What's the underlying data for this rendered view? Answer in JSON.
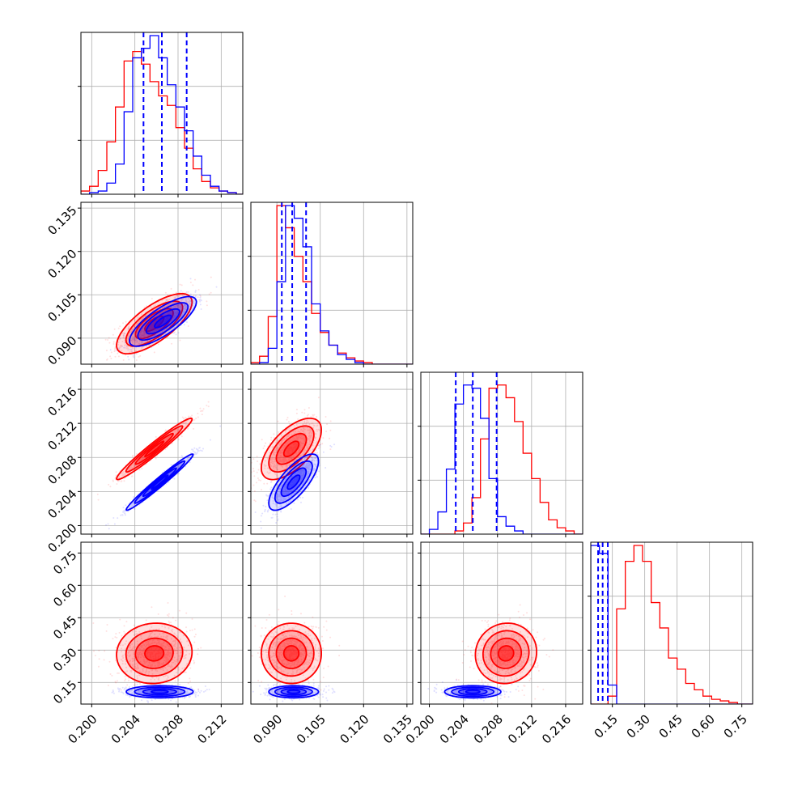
{
  "chart_data": {
    "type": "corner",
    "title": "",
    "colors": {
      "series_a": "#0000ff",
      "series_b": "#ff0000"
    },
    "grid": true,
    "parameters": [
      {
        "index": 0,
        "range": [
          0.199,
          0.214
        ],
        "ticks": [
          0.2,
          0.204,
          0.208,
          0.212
        ],
        "tick_labels": [
          "0.200",
          "0.204",
          "0.208",
          "0.212"
        ]
      },
      {
        "index": 1,
        "range": [
          0.081,
          0.137
        ],
        "ticks": [
          0.09,
          0.105,
          0.12,
          0.135
        ],
        "tick_labels": [
          "0.090",
          "0.105",
          "0.120",
          "0.135"
        ]
      },
      {
        "index": 2,
        "range": [
          0.199,
          0.218
        ],
        "ticks": [
          0.2,
          0.204,
          0.208,
          0.212,
          0.216
        ],
        "tick_labels": [
          "0.200",
          "0.204",
          "0.208",
          "0.212",
          "0.216"
        ]
      },
      {
        "index": 3,
        "range": [
          0.05,
          0.8
        ],
        "ticks": [
          0.15,
          0.3,
          0.45,
          0.6,
          0.75
        ],
        "tick_labels": [
          "0.15",
          "0.30",
          "0.45",
          "0.60",
          "0.75"
        ]
      }
    ],
    "diag_ylim": [
      [
        0,
        1.0
      ],
      [
        0,
        1.0
      ],
      [
        0,
        1.0
      ],
      [
        0,
        1.0
      ]
    ],
    "histograms": [
      {
        "param": 0,
        "edges": [
          0.199,
          0.1998,
          0.2006,
          0.2014,
          0.2022,
          0.203,
          0.2038,
          0.2046,
          0.2054,
          0.2062,
          0.207,
          0.2078,
          0.2086,
          0.2094,
          0.2102,
          0.211,
          0.2118,
          0.2126,
          0.2134,
          0.214
        ],
        "series_a_values": [
          0.0,
          0.01,
          0.02,
          0.07,
          0.19,
          0.52,
          0.86,
          0.92,
          1.0,
          0.86,
          0.69,
          0.55,
          0.4,
          0.24,
          0.12,
          0.05,
          0.02,
          0.01,
          0.0
        ],
        "series_b_values": [
          0.02,
          0.05,
          0.15,
          0.33,
          0.55,
          0.84,
          0.9,
          0.82,
          0.71,
          0.62,
          0.56,
          0.42,
          0.29,
          0.16,
          0.08,
          0.04,
          0.02,
          0.01,
          0.0
        ],
        "quantiles": [
          0.2048,
          0.2065,
          0.2088
        ]
      },
      {
        "param": 1,
        "edges": [
          0.081,
          0.084,
          0.087,
          0.09,
          0.093,
          0.096,
          0.099,
          0.102,
          0.105,
          0.108,
          0.111,
          0.114,
          0.117,
          0.12,
          0.123,
          0.126,
          0.129,
          0.132,
          0.135,
          0.137
        ],
        "series_a_values": [
          0.0,
          0.01,
          0.1,
          0.52,
          1.0,
          0.92,
          0.74,
          0.38,
          0.21,
          0.12,
          0.06,
          0.03,
          0.01,
          0.0,
          0.0,
          0.0,
          0.0,
          0.0,
          0.0
        ],
        "series_b_values": [
          0.01,
          0.05,
          0.3,
          1.0,
          0.86,
          0.68,
          0.52,
          0.32,
          0.2,
          0.12,
          0.07,
          0.04,
          0.02,
          0.01,
          0.0,
          0.0,
          0.0,
          0.0,
          0.0
        ],
        "quantiles": [
          0.0917,
          0.0953,
          0.1001
        ]
      },
      {
        "param": 2,
        "edges": [
          0.199,
          0.2,
          0.201,
          0.202,
          0.203,
          0.204,
          0.205,
          0.206,
          0.207,
          0.208,
          0.209,
          0.21,
          0.211,
          0.212,
          0.213,
          0.214,
          0.215,
          0.216,
          0.217,
          0.218
        ],
        "series_a_values": [
          0.0,
          0.03,
          0.14,
          0.41,
          0.82,
          0.94,
          0.92,
          0.73,
          0.35,
          0.11,
          0.05,
          0.02,
          0.0,
          0.0,
          0.0,
          0.0,
          0.0,
          0.0,
          0.0
        ],
        "series_b_values": [
          0.0,
          0.0,
          0.0,
          0.0,
          0.02,
          0.07,
          0.23,
          0.6,
          0.92,
          0.94,
          0.86,
          0.71,
          0.51,
          0.35,
          0.2,
          0.09,
          0.04,
          0.02,
          0.0
        ],
        "quantiles": [
          0.2031,
          0.2051,
          0.2079
        ]
      },
      {
        "param": 3,
        "edges": [
          0.05,
          0.09,
          0.13,
          0.17,
          0.21,
          0.25,
          0.29,
          0.33,
          0.37,
          0.41,
          0.45,
          0.49,
          0.53,
          0.57,
          0.61,
          0.65,
          0.69,
          0.73,
          0.77,
          0.8
        ],
        "series_a_values": [
          1.0,
          0.95,
          0.12,
          0.0,
          0.0,
          0.0,
          0.0,
          0.0,
          0.0,
          0.0,
          0.0,
          0.0,
          0.0,
          0.0,
          0.0,
          0.0,
          0.0,
          0.0,
          0.0
        ],
        "series_b_values": [
          0.0,
          0.0,
          0.05,
          0.6,
          0.9,
          1.0,
          0.9,
          0.64,
          0.48,
          0.29,
          0.22,
          0.13,
          0.09,
          0.05,
          0.03,
          0.02,
          0.01,
          0.0,
          0.0
        ],
        "quantiles": [
          0.084,
          0.105,
          0.129
        ]
      }
    ],
    "joint": [
      {
        "x_param": 0,
        "y_param": 1,
        "series_a": {
          "center": [
            0.2066,
            0.0958
          ],
          "sd": [
            0.00155,
            0.0043
          ],
          "corr": 0.78
        },
        "series_b": {
          "center": [
            0.2058,
            0.095
          ],
          "sd": [
            0.00175,
            0.0052
          ],
          "corr": 0.72
        }
      },
      {
        "x_param": 0,
        "y_param": 2,
        "series_a": {
          "center": [
            0.2063,
            0.2051
          ],
          "sd": [
            0.00155,
            0.00165
          ],
          "corr": 0.98
        },
        "series_b": {
          "center": [
            0.2058,
            0.209
          ],
          "sd": [
            0.00175,
            0.0018
          ],
          "corr": 0.97
        }
      },
      {
        "x_param": 1,
        "y_param": 2,
        "series_a": {
          "center": [
            0.0958,
            0.2051
          ],
          "sd": [
            0.0043,
            0.00165
          ],
          "corr": 0.75
        },
        "series_b": {
          "center": [
            0.095,
            0.209
          ],
          "sd": [
            0.0052,
            0.0018
          ],
          "corr": 0.62
        }
      },
      {
        "x_param": 0,
        "y_param": 3,
        "series_a": {
          "center": [
            0.2063,
            0.107
          ],
          "sd": [
            0.00155,
            0.014
          ],
          "corr": 0.0
        },
        "series_b": {
          "center": [
            0.2058,
            0.285
          ],
          "sd": [
            0.00175,
            0.07
          ],
          "corr": 0.05
        }
      },
      {
        "x_param": 1,
        "y_param": 3,
        "series_a": {
          "center": [
            0.0958,
            0.107
          ],
          "sd": [
            0.0043,
            0.014
          ],
          "corr": 0.0
        },
        "series_b": {
          "center": [
            0.095,
            0.285
          ],
          "sd": [
            0.0052,
            0.07
          ],
          "corr": 0.0
        }
      },
      {
        "x_param": 2,
        "y_param": 3,
        "series_a": {
          "center": [
            0.2051,
            0.107
          ],
          "sd": [
            0.00165,
            0.014
          ],
          "corr": 0.0
        },
        "series_b": {
          "center": [
            0.209,
            0.285
          ],
          "sd": [
            0.0018,
            0.07
          ],
          "corr": 0.05
        }
      }
    ],
    "contour_levels_sigma": [
      0.5,
      1.0,
      1.5,
      2.0
    ]
  }
}
